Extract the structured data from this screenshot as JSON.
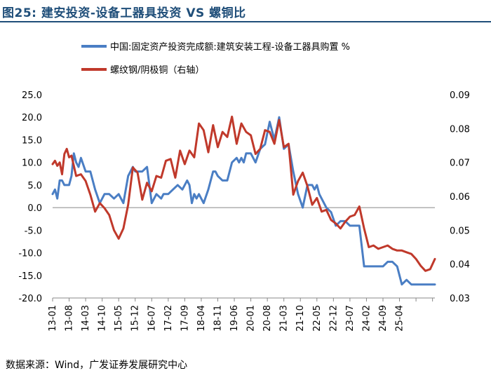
{
  "title": "图25:  建安投资-设备工器具投资  VS  螺铜比",
  "source": "数据来源：Wind，广发证券发展研究中心",
  "colors": {
    "blue": "#4A7EC4",
    "red": "#C0392B",
    "title": "#1F4E79",
    "axis": "#888888"
  },
  "chart_data": {
    "type": "line",
    "title": "建安投资-设备工器具投资 VS 螺铜比",
    "xlabel": "",
    "ylabel": "",
    "y_left_lim": [
      -20,
      25
    ],
    "y_left_ticks": [
      "25.0",
      "20.0",
      "15.0",
      "10.0",
      "5.0",
      "0.0",
      "-5.0",
      "-10.0",
      "-15.0",
      "-20.0"
    ],
    "y_right_lim": [
      0.03,
      0.09
    ],
    "y_right_ticks": [
      "0.09",
      "0.08",
      "0.07",
      "0.06",
      "0.05",
      "0.04",
      "0.03"
    ],
    "x_tick_labels": [
      "13-01",
      "13-08",
      "14-03",
      "14-10",
      "15-05",
      "15-12",
      "16-07",
      "17-02",
      "17-09",
      "18-04",
      "18-11",
      "19-06",
      "20-01",
      "20-08",
      "21-03",
      "21-10",
      "22-05",
      "22-12",
      "23-07",
      "24-02",
      "24-09",
      "25-04"
    ],
    "legend": [
      "中国:固定资产投资完成额:建筑安装工程-设备工器具购置 %",
      "螺纹钢/阴极铜（右轴）"
    ],
    "series": [
      {
        "name": "中国:固定资产投资完成额:建筑安装工程-设备工器具购置 %",
        "axis": "left",
        "x": [
          0,
          1,
          2,
          3,
          4,
          5,
          7,
          8,
          9,
          10,
          11,
          12,
          14,
          16,
          18,
          20,
          22,
          24,
          26,
          28,
          30,
          32,
          34,
          35,
          36,
          38,
          40,
          42,
          44,
          46,
          47,
          48,
          49,
          51,
          53,
          55,
          57,
          58,
          59,
          60,
          61,
          62,
          63,
          64,
          66,
          68,
          69,
          70,
          72,
          74,
          76,
          78,
          79,
          80,
          81,
          82,
          84,
          86,
          88,
          90,
          92,
          94,
          96,
          98,
          100,
          102,
          104,
          106,
          108,
          110,
          111,
          112,
          113,
          114,
          116,
          118,
          120,
          122,
          124,
          126,
          128,
          130,
          132,
          134,
          136,
          138,
          140,
          142,
          144,
          146,
          148,
          150,
          152,
          154,
          156,
          158,
          160,
          162
        ],
        "y": [
          3,
          4,
          2,
          6,
          6,
          5,
          5,
          7,
          12,
          10,
          9,
          11,
          8,
          8,
          4,
          1,
          3,
          3,
          2,
          3,
          1,
          7,
          9,
          8,
          8,
          8,
          9,
          1,
          3,
          2,
          3,
          3,
          3,
          4,
          5,
          4,
          6,
          5,
          1,
          3,
          2,
          3,
          2,
          1,
          4,
          8,
          8,
          7,
          6,
          6,
          10,
          11,
          10,
          11,
          10,
          12,
          12,
          10,
          13,
          14,
          19,
          15,
          20,
          13,
          14,
          8,
          3,
          0,
          5,
          5,
          4,
          5,
          3,
          2,
          0,
          -1,
          -4,
          -3,
          -3,
          -4,
          -4,
          -4,
          -13,
          -13,
          -13,
          -13,
          -13,
          -12,
          -12,
          -13,
          -17,
          -16,
          -17,
          -17,
          -17,
          -17,
          -17,
          -17
        ]
      },
      {
        "name": "螺纹钢/阴极铜（右轴）",
        "axis": "right",
        "x": [
          0,
          1,
          2,
          3,
          4,
          5,
          6,
          7,
          8,
          10,
          12,
          14,
          16,
          18,
          20,
          22,
          24,
          26,
          28,
          30,
          32,
          34,
          36,
          38,
          40,
          42,
          44,
          46,
          48,
          50,
          52,
          54,
          56,
          58,
          60,
          62,
          64,
          66,
          68,
          70,
          72,
          74,
          76,
          78,
          80,
          82,
          84,
          86,
          88,
          90,
          92,
          94,
          96,
          98,
          100,
          102,
          104,
          106,
          108,
          110,
          112,
          114,
          116,
          118,
          120,
          122,
          124,
          126,
          128,
          130,
          132,
          134,
          136,
          138,
          140,
          142,
          144,
          146,
          148,
          150,
          152,
          154,
          156,
          158,
          160,
          162
        ],
        "y": [
          0.0695,
          0.0705,
          0.069,
          0.07,
          0.0665,
          0.0725,
          0.074,
          0.0715,
          0.072,
          0.066,
          0.0665,
          0.0645,
          0.0605,
          0.0555,
          0.058,
          0.0565,
          0.0545,
          0.05,
          0.0475,
          0.0505,
          0.0575,
          0.0685,
          0.067,
          0.059,
          0.064,
          0.0615,
          0.066,
          0.0655,
          0.0705,
          0.071,
          0.0655,
          0.0735,
          0.0695,
          0.0735,
          0.0715,
          0.0815,
          0.0795,
          0.073,
          0.081,
          0.0745,
          0.079,
          0.0775,
          0.0835,
          0.0755,
          0.0815,
          0.079,
          0.078,
          0.0725,
          0.074,
          0.0795,
          0.079,
          0.0755,
          0.0825,
          0.0745,
          0.0755,
          0.0605,
          0.0645,
          0.067,
          0.063,
          0.0575,
          0.0595,
          0.0555,
          0.056,
          0.053,
          0.052,
          0.0505,
          0.0525,
          0.054,
          0.0545,
          0.057,
          0.0505,
          0.045,
          0.0455,
          0.0445,
          0.045,
          0.0455,
          0.0445,
          0.044,
          0.044,
          0.0435,
          0.043,
          0.0415,
          0.0395,
          0.038,
          0.0385,
          0.0415
        ]
      }
    ]
  }
}
